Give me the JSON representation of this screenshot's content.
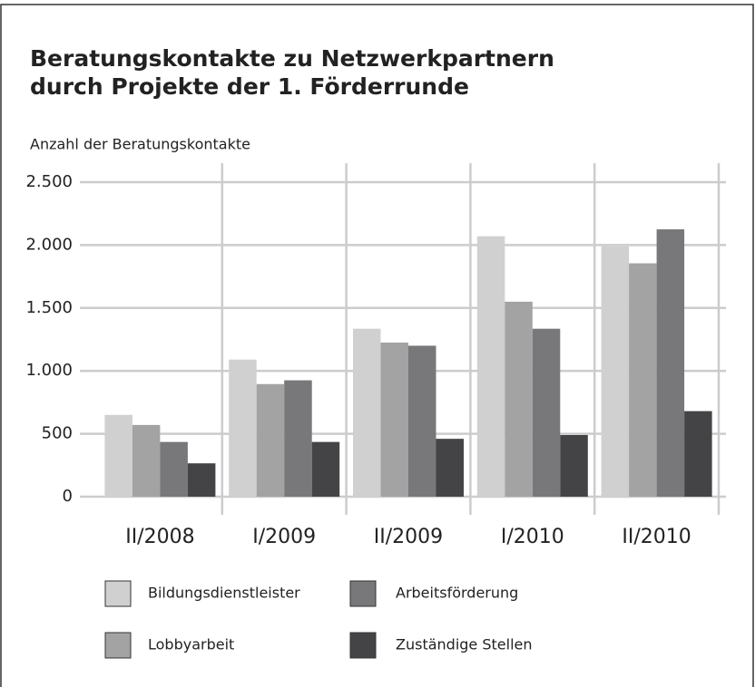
{
  "chart_data": {
    "type": "bar",
    "title": [
      "Beratungskontakte zu Netzwerkpartnern",
      "durch Projekte der 1. Förderrunde"
    ],
    "y_label": "Anzahl der Beratungskontakte",
    "categories": [
      "II/2008",
      "I/2009",
      "II/2009",
      "I/2010",
      "II/2010"
    ],
    "series": [
      {
        "name": "Bildungsdienstleister",
        "color": "#d0d0d0",
        "values": [
          650,
          1090,
          1335,
          2070,
          1990
        ]
      },
      {
        "name": "Lobbyarbeit",
        "color": "#a3a3a3",
        "values": [
          570,
          895,
          1225,
          1550,
          1855
        ]
      },
      {
        "name": "Arbeitsförderung",
        "color": "#78787b",
        "values": [
          435,
          925,
          1200,
          1335,
          2125
        ]
      },
      {
        "name": "Zuständige Stellen",
        "color": "#444446",
        "values": [
          265,
          435,
          460,
          490,
          680
        ]
      }
    ],
    "ylim": [
      0,
      2500
    ],
    "yticks": [
      0,
      {
        "value": 500,
        "label": "500"
      },
      {
        "value": 1000,
        "label": "1.000"
      },
      {
        "value": 1500,
        "label": "1.500"
      },
      {
        "value": 2000,
        "label": "2.000"
      },
      {
        "value": 2500,
        "label": "2.500"
      }
    ],
    "grid": true
  }
}
